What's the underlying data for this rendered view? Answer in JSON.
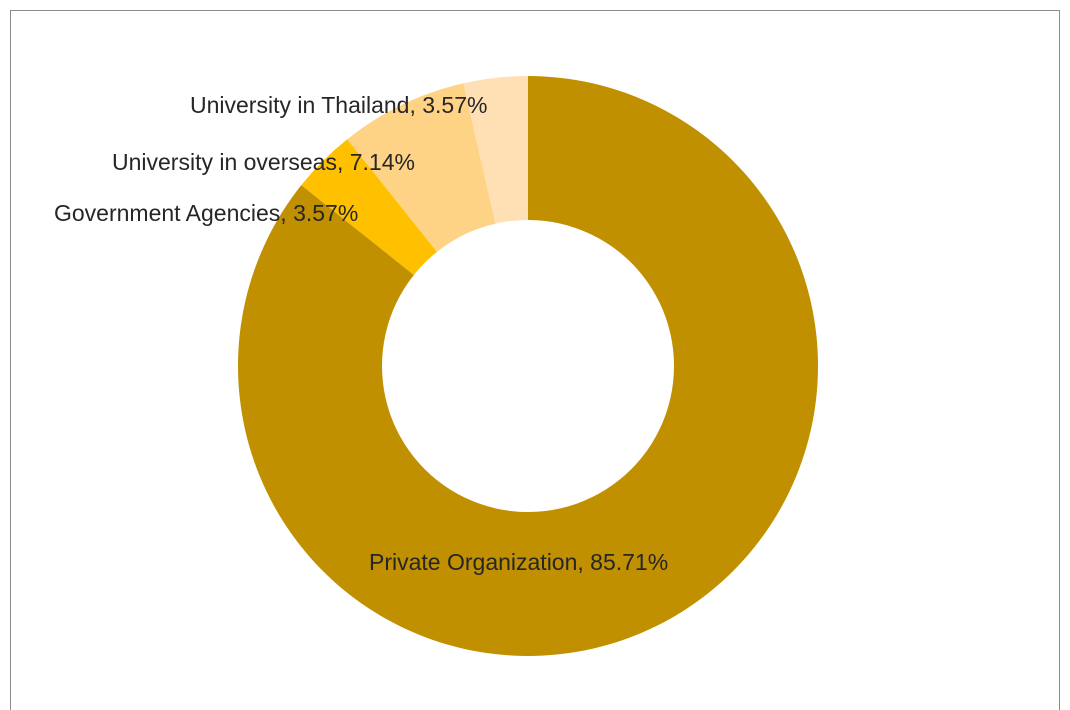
{
  "chart_data": {
    "type": "pie",
    "variant": "doughnut",
    "title": "",
    "slices": [
      {
        "label": "Private Organization",
        "value": 85.71,
        "value_label": "85.71%",
        "color": "#C09000"
      },
      {
        "label": "Government Agencies",
        "value": 3.57,
        "value_label": "3.57%",
        "color": "#FFC000"
      },
      {
        "label": "University in overseas",
        "value": 7.14,
        "value_label": "7.14%",
        "color": "#FFD386"
      },
      {
        "label": "University in Thailand",
        "value": 3.57,
        "value_label": "3.57%",
        "color": "#FFE0B5"
      }
    ],
    "legend": "none",
    "labels": {
      "private": "Private Organization, 85.71%",
      "government": "Government Agencies, 3.57%",
      "overseas": "University in overseas, 7.14%",
      "thailand": "University in Thailand, 3.57%"
    }
  }
}
